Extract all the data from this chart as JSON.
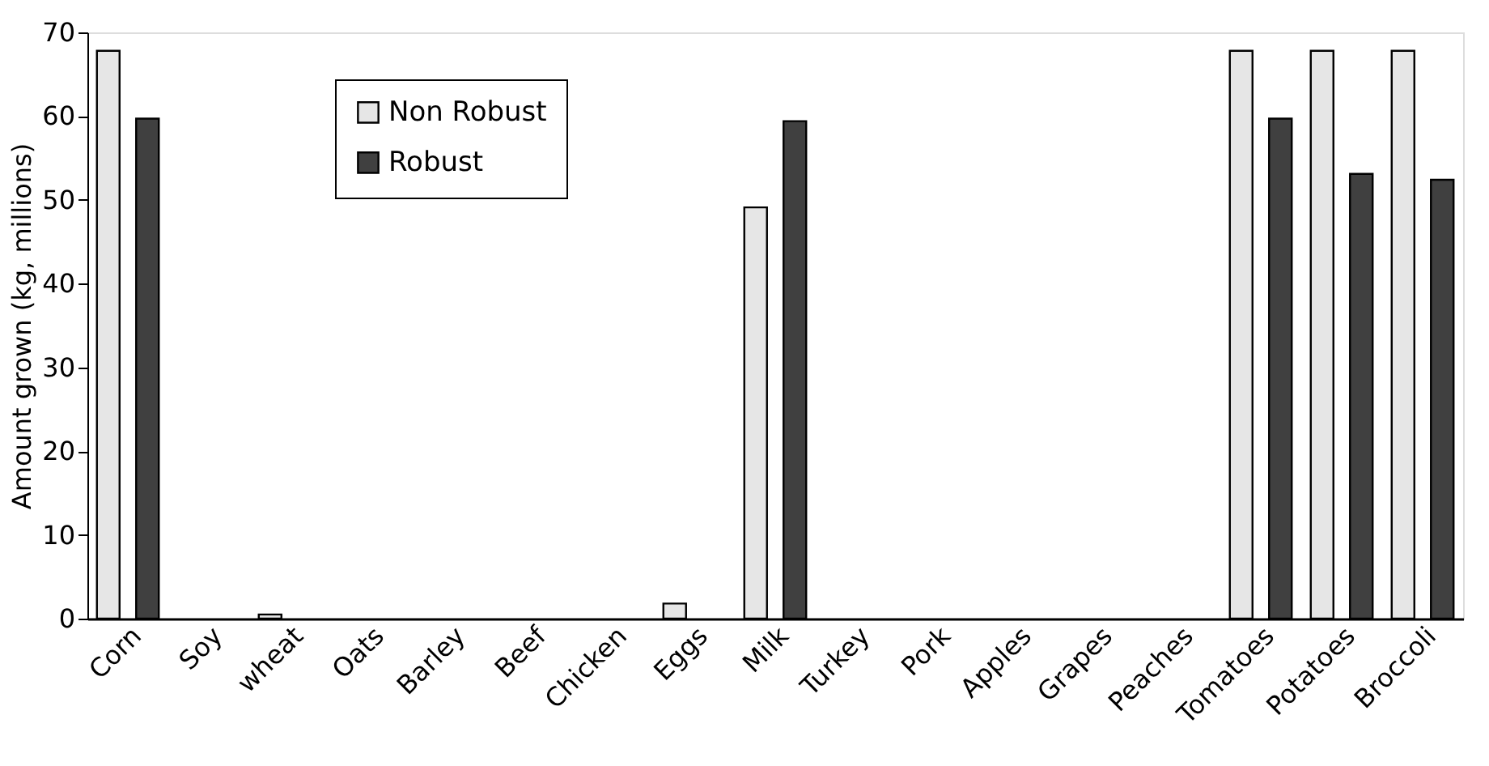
{
  "chart_data": {
    "type": "bar",
    "ylabel": "Amount grown (kg, millions)",
    "categories": [
      "Corn",
      "Soy",
      "wheat",
      "Oats",
      "Barley",
      "Beef",
      "Chicken",
      "Eggs",
      "Milk",
      "Turkey",
      "Pork",
      "Apples",
      "Grapes",
      "Peaches",
      "Tomatoes",
      "Potatoes",
      "Broccoli"
    ],
    "series": [
      {
        "name": "Non Robust",
        "color": "#e6e6e6",
        "values": [
          67.8,
          null,
          0.5,
          null,
          null,
          null,
          null,
          1.8,
          49.1,
          null,
          null,
          null,
          null,
          null,
          67.8,
          67.8,
          67.8
        ]
      },
      {
        "name": "Robust",
        "color": "#404040",
        "values": [
          59.7,
          null,
          null,
          null,
          null,
          null,
          null,
          null,
          59.4,
          null,
          null,
          null,
          null,
          null,
          59.7,
          53.1,
          52.4
        ]
      }
    ],
    "ylim": [
      0,
      70
    ],
    "yticks": [
      0,
      10,
      20,
      30,
      40,
      50,
      60,
      70
    ],
    "grid": false,
    "legend": "top left"
  }
}
